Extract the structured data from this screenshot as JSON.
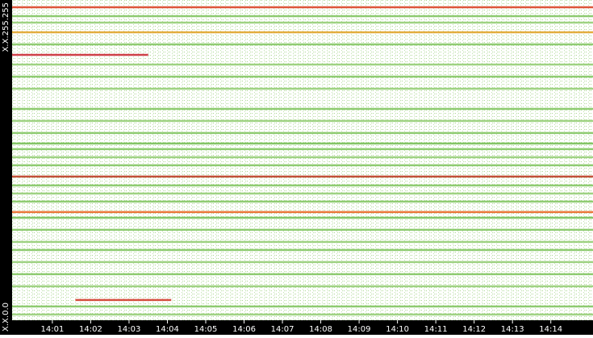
{
  "chart_data": {
    "type": "streaks",
    "xlim": [
      -0.05,
      15.1
    ],
    "xticks": [
      {
        "value": 1,
        "label": "14:01"
      },
      {
        "value": 2,
        "label": "14:02"
      },
      {
        "value": 3,
        "label": "14:03"
      },
      {
        "value": 4,
        "label": "14:04"
      },
      {
        "value": 5,
        "label": "14:05"
      },
      {
        "value": 6,
        "label": "14:06"
      },
      {
        "value": 7,
        "label": "14:07"
      },
      {
        "value": 8,
        "label": "14:08"
      },
      {
        "value": 9,
        "label": "14:09"
      },
      {
        "value": 10,
        "label": "14:10"
      },
      {
        "value": 11,
        "label": "14:11"
      },
      {
        "value": 12,
        "label": "14:12"
      },
      {
        "value": 13,
        "label": "14:13"
      },
      {
        "value": 14,
        "label": "14:14"
      }
    ],
    "ylim": [
      0,
      65535
    ],
    "yticks": [
      {
        "value": 0,
        "label": "X.X.0.0"
      },
      {
        "value": 65535,
        "label": "X.X.255.255"
      }
    ],
    "streaks": [
      {
        "y": 62235,
        "x0": -0.05,
        "x1": 15.1,
        "color": "#7cc35a"
      },
      {
        "y": 60915,
        "x0": -0.05,
        "x1": 15.1,
        "color": "#8fcb6e"
      },
      {
        "y": 56460,
        "x0": -0.05,
        "x1": 15.1,
        "color": "#7cc35a"
      },
      {
        "y": 52335,
        "x0": -0.05,
        "x1": 15.1,
        "color": "#8fcb6e"
      },
      {
        "y": 49860,
        "x0": -0.05,
        "x1": 15.1,
        "color": "#7cc35a"
      },
      {
        "y": 47385,
        "x0": -0.05,
        "x1": 15.1,
        "color": "#8fcb6e"
      },
      {
        "y": 43260,
        "x0": -0.05,
        "x1": 15.1,
        "color": "#7cc35a"
      },
      {
        "y": 40785,
        "x0": -0.05,
        "x1": 15.1,
        "color": "#8fcb6e"
      },
      {
        "y": 38310,
        "x0": -0.05,
        "x1": 15.1,
        "color": "#7cc35a"
      },
      {
        "y": 36165,
        "x0": -0.05,
        "x1": 15.1,
        "color": "#6fbb4c"
      },
      {
        "y": 35010,
        "x0": -0.05,
        "x1": 15.1,
        "color": "#7cc35a"
      },
      {
        "y": 33360,
        "x0": -0.05,
        "x1": 15.1,
        "color": "#8fcb6e"
      },
      {
        "y": 31710,
        "x0": -0.05,
        "x1": 15.1,
        "color": "#7cc35a"
      },
      {
        "y": 27585,
        "x0": -0.05,
        "x1": 15.1,
        "color": "#7cc35a"
      },
      {
        "y": 25935,
        "x0": -0.05,
        "x1": 15.1,
        "color": "#8fcb6e"
      },
      {
        "y": 24285,
        "x0": -0.05,
        "x1": 15.1,
        "color": "#7cc35a"
      },
      {
        "y": 20985,
        "x0": -0.05,
        "x1": 15.1,
        "color": "#6fbb4c"
      },
      {
        "y": 18510,
        "x0": -0.05,
        "x1": 15.1,
        "color": "#7cc35a"
      },
      {
        "y": 16035,
        "x0": -0.05,
        "x1": 15.1,
        "color": "#8fcb6e"
      },
      {
        "y": 14385,
        "x0": -0.05,
        "x1": 15.1,
        "color": "#7cc35a"
      },
      {
        "y": 11910,
        "x0": -0.05,
        "x1": 15.1,
        "color": "#8fcb6e"
      },
      {
        "y": 9435,
        "x0": -0.05,
        "x1": 15.1,
        "color": "#7cc35a"
      },
      {
        "y": 6960,
        "x0": -0.05,
        "x1": 15.1,
        "color": "#8fcb6e"
      },
      {
        "y": 2835,
        "x0": -0.05,
        "x1": 15.1,
        "color": "#7cc35a"
      },
      {
        "y": 1185,
        "x0": -0.05,
        "x1": 15.1,
        "color": "#8fcb6e"
      },
      {
        "y": 64050,
        "x0": -0.05,
        "x1": 15.1,
        "color": "#d93a1a"
      },
      {
        "y": 58935,
        "x0": -0.05,
        "x1": 15.1,
        "color": "#e0a020"
      },
      {
        "y": 54315,
        "x0": -0.05,
        "x1": 3.5,
        "color": "#c8202a"
      },
      {
        "y": 29400,
        "x0": -0.05,
        "x1": 15.1,
        "color": "#b83218"
      },
      {
        "y": 22140,
        "x0": -0.05,
        "x1": 15.1,
        "color": "#e8601a"
      },
      {
        "y": 4155,
        "x0": 1.6,
        "x1": 4.1,
        "color": "#d03020"
      }
    ]
  }
}
